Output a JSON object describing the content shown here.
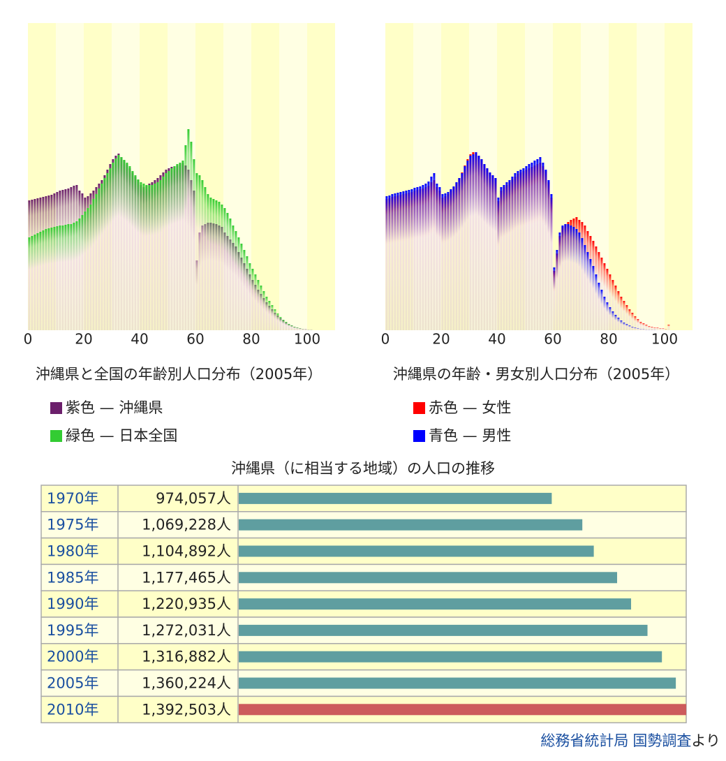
{
  "chart_data": [
    {
      "type": "bar",
      "title": "沖縄県と全国の年齢別人口分布（2005年）",
      "x": [
        0,
        1,
        2,
        3,
        4,
        5,
        6,
        7,
        8,
        9,
        10,
        11,
        12,
        13,
        14,
        15,
        16,
        17,
        18,
        19,
        20,
        21,
        22,
        23,
        24,
        25,
        26,
        27,
        28,
        29,
        30,
        31,
        32,
        33,
        34,
        35,
        36,
        37,
        38,
        39,
        40,
        41,
        42,
        43,
        44,
        45,
        46,
        47,
        48,
        49,
        50,
        51,
        52,
        53,
        54,
        55,
        56,
        57,
        58,
        59,
        60,
        61,
        62,
        63,
        64,
        65,
        66,
        67,
        68,
        69,
        70,
        71,
        72,
        73,
        74,
        75,
        76,
        77,
        78,
        79,
        80,
        81,
        82,
        83,
        84,
        85,
        86,
        87,
        88,
        89,
        90,
        91,
        92,
        93,
        94,
        95,
        96,
        97,
        98,
        99,
        100,
        101
      ],
      "xlim": [
        0,
        110
      ],
      "xticks": [
        0,
        20,
        40,
        60,
        80,
        100
      ],
      "ylim": [
        0,
        440
      ],
      "series": [
        {
          "name": "紫色 — 沖縄県",
          "color": "#6b1f6b",
          "values": [
            186,
            187,
            188,
            189,
            190,
            191,
            192,
            193,
            194,
            196,
            198,
            200,
            201,
            202,
            203,
            205,
            207,
            208,
            200,
            196,
            190,
            192,
            196,
            200,
            205,
            210,
            215,
            222,
            230,
            238,
            245,
            250,
            253,
            248,
            243,
            238,
            232,
            226,
            220,
            215,
            208,
            205,
            207,
            210,
            212,
            215,
            218,
            222,
            226,
            230,
            232,
            234,
            235,
            236,
            238,
            240,
            236,
            230,
            215,
            200,
            100,
            140,
            150,
            152,
            154,
            154,
            153,
            152,
            150,
            148,
            140,
            135,
            130,
            125,
            120,
            112,
            104,
            96,
            88,
            80,
            72,
            65,
            58,
            52,
            46,
            40,
            35,
            30,
            25,
            21,
            17,
            14,
            11,
            9,
            7,
            5,
            4,
            3,
            2,
            2,
            1,
            1
          ]
        },
        {
          "name": "緑色 — 日本全国",
          "color": "#33cc33",
          "values": [
            133,
            135,
            137,
            139,
            141,
            143,
            145,
            146,
            147,
            148,
            149,
            150,
            150,
            151,
            152,
            152,
            154,
            156,
            160,
            165,
            170,
            175,
            180,
            188,
            195,
            203,
            210,
            218,
            225,
            232,
            240,
            246,
            251,
            248,
            244,
            240,
            235,
            228,
            222,
            216,
            212,
            210,
            208,
            208,
            208,
            210,
            212,
            215,
            220,
            225,
            228,
            232,
            235,
            238,
            240,
            243,
            265,
            288,
            270,
            245,
            225,
            222,
            215,
            205,
            195,
            190,
            188,
            186,
            184,
            180,
            175,
            168,
            160,
            150,
            142,
            133,
            124,
            115,
            106,
            96,
            88,
            80,
            72,
            64,
            56,
            48,
            42,
            36,
            30,
            24,
            19,
            15,
            12,
            9,
            7,
            5,
            4,
            3,
            2,
            1,
            1,
            1
          ]
        }
      ]
    },
    {
      "type": "bar",
      "title": "沖縄県の年齢・男女別人口分布（2005年）",
      "x": [
        0,
        1,
        2,
        3,
        4,
        5,
        6,
        7,
        8,
        9,
        10,
        11,
        12,
        13,
        14,
        15,
        16,
        17,
        18,
        19,
        20,
        21,
        22,
        23,
        24,
        25,
        26,
        27,
        28,
        29,
        30,
        31,
        32,
        33,
        34,
        35,
        36,
        37,
        38,
        39,
        40,
        41,
        42,
        43,
        44,
        45,
        46,
        47,
        48,
        49,
        50,
        51,
        52,
        53,
        54,
        55,
        56,
        57,
        58,
        59,
        60,
        61,
        62,
        63,
        64,
        65,
        66,
        67,
        68,
        69,
        70,
        71,
        72,
        73,
        74,
        75,
        76,
        77,
        78,
        79,
        80,
        81,
        82,
        83,
        84,
        85,
        86,
        87,
        88,
        89,
        90,
        91,
        92,
        93,
        94,
        95,
        96,
        97,
        98,
        99,
        100,
        101
      ],
      "xlim": [
        0,
        110
      ],
      "xticks": [
        0,
        20,
        40,
        60,
        80,
        100
      ],
      "ylim": [
        0,
        440
      ],
      "series": [
        {
          "name": "赤色 — 女性",
          "color": "#ff0000",
          "values": [
            188,
            189,
            191,
            192,
            193,
            194,
            195,
            196,
            197,
            198,
            200,
            201,
            202,
            203,
            205,
            207,
            212,
            215,
            205,
            200,
            190,
            192,
            195,
            200,
            205,
            211,
            218,
            226,
            236,
            245,
            252,
            255,
            255,
            250,
            245,
            238,
            232,
            226,
            222,
            218,
            185,
            200,
            205,
            208,
            212,
            216,
            220,
            224,
            226,
            228,
            230,
            232,
            234,
            236,
            238,
            240,
            235,
            228,
            212,
            190,
            85,
            110,
            135,
            148,
            152,
            155,
            158,
            160,
            162,
            158,
            155,
            150,
            142,
            135,
            128,
            120,
            112,
            104,
            96,
            88,
            80,
            72,
            64,
            56,
            48,
            42,
            36,
            30,
            25,
            20,
            16,
            12,
            10,
            8,
            6,
            5,
            4,
            4,
            3,
            3,
            2,
            8
          ]
        },
        {
          "name": "青色 — 男性",
          "color": "#0000ff",
          "values": [
            192,
            193,
            195,
            196,
            197,
            198,
            199,
            200,
            201,
            202,
            204,
            205,
            206,
            208,
            210,
            213,
            220,
            225,
            210,
            205,
            195,
            196,
            198,
            202,
            206,
            212,
            218,
            225,
            235,
            243,
            250,
            252,
            255,
            250,
            245,
            238,
            232,
            226,
            222,
            218,
            190,
            205,
            208,
            212,
            215,
            220,
            225,
            228,
            230,
            232,
            235,
            238,
            240,
            243,
            245,
            248,
            240,
            230,
            215,
            195,
            90,
            115,
            140,
            150,
            152,
            152,
            150,
            148,
            145,
            140,
            132,
            122,
            112,
            102,
            92,
            80,
            68,
            58,
            48,
            40,
            33,
            27,
            22,
            18,
            14,
            11,
            9,
            7,
            5,
            4,
            3,
            2,
            2,
            1,
            1,
            1,
            1,
            0,
            0,
            0,
            0,
            0
          ]
        }
      ]
    },
    {
      "type": "barh",
      "title": "沖縄県（に相当する地域）の人口の推移",
      "categories": [
        "1970年",
        "1975年",
        "1980年",
        "1985年",
        "1990年",
        "1995年",
        "2000年",
        "2005年",
        "2010年"
      ],
      "values": [
        974057,
        1069228,
        1104892,
        1177465,
        1220935,
        1272031,
        1316882,
        1360224,
        1392503
      ],
      "value_labels": [
        "974,057人",
        "1,069,228人",
        "1,104,892人",
        "1,177,465人",
        "1,220,935人",
        "1,272,031人",
        "1,316,882人",
        "1,360,224人",
        "1,392,503人"
      ],
      "bar_colors": [
        "#5f9ea0",
        "#5f9ea0",
        "#5f9ea0",
        "#5f9ea0",
        "#5f9ea0",
        "#5f9ea0",
        "#5f9ea0",
        "#5f9ea0",
        "#cd5c5c"
      ]
    }
  ],
  "source": {
    "links": [
      "総務省統計局",
      "国勢調査"
    ],
    "suffix": "より"
  }
}
